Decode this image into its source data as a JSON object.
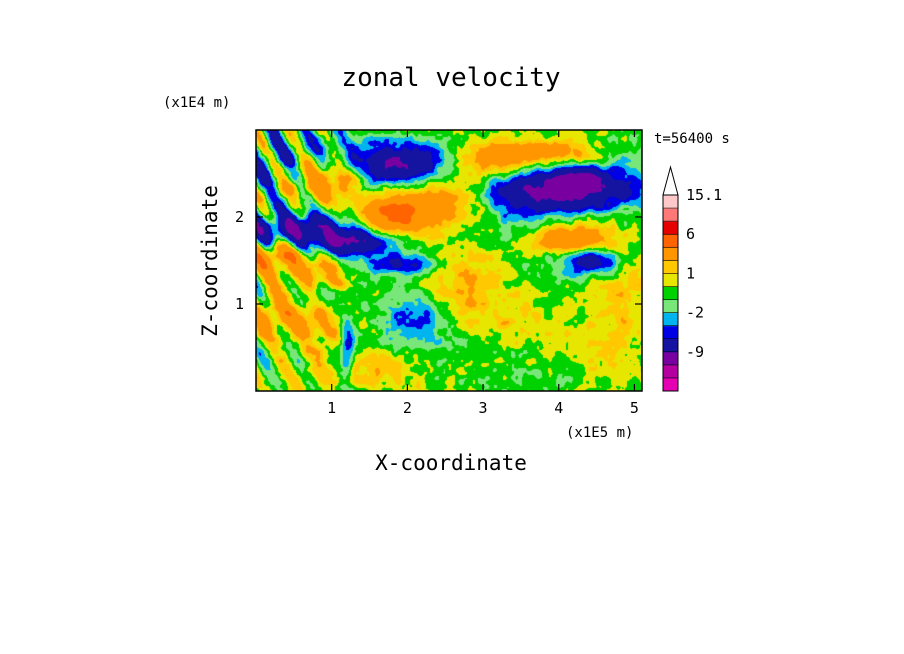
{
  "chart_data": {
    "type": "heatmap",
    "title": "zonal velocity",
    "xlabel": "X-coordinate",
    "ylabel": "Z-coordinate",
    "x_unit": "(x1E5 m)",
    "y_unit": "(x1E4 m)",
    "time_label": "t=56400 s",
    "xlim": [
      0.0,
      5.1
    ],
    "ylim": [
      0.0,
      3.0
    ],
    "x_ticks": [
      1,
      2,
      3,
      4,
      5
    ],
    "y_ticks": [
      1,
      2
    ],
    "colorbar": {
      "levels": [
        -15,
        -12,
        -9,
        -6,
        -3,
        -2,
        -1,
        0,
        1,
        2,
        3,
        6,
        9,
        12,
        15.1
      ],
      "colors": [
        "#e600b4",
        "#b400a0",
        "#7800a0",
        "#1414a0",
        "#0000e6",
        "#00b4f0",
        "#78e678",
        "#00d200",
        "#e6e600",
        "#ffc800",
        "#ff9600",
        "#ff6400",
        "#e60000",
        "#ff7878",
        "#ffc8c8"
      ],
      "tick_labels": [
        {
          "value": -9,
          "label": "-9"
        },
        {
          "value": -2,
          "label": "-2"
        },
        {
          "value": 1,
          "label": "1"
        },
        {
          "value": 6,
          "label": "6"
        },
        {
          "value": 15.1,
          "label": "15.1"
        }
      ],
      "extend_max": true
    },
    "features": [
      {
        "x": 1.9,
        "z": 2.6,
        "sx": 0.45,
        "sz": 0.17,
        "v": -7
      },
      {
        "x": 3.9,
        "z": 2.3,
        "sx": 0.75,
        "sz": 0.16,
        "v": -8
      },
      {
        "x": 4.4,
        "z": 1.5,
        "sx": 0.25,
        "sz": 0.1,
        "v": -6
      },
      {
        "x": 4.3,
        "z": 2.45,
        "sx": 0.25,
        "sz": 0.1,
        "v": -4
      },
      {
        "x": 0.5,
        "z": 1.85,
        "sx": 0.6,
        "sz": 0.15,
        "v": -6
      },
      {
        "x": 1.3,
        "z": 1.7,
        "sx": 0.4,
        "sz": 0.1,
        "v": -6
      },
      {
        "x": 2.0,
        "z": 1.45,
        "sx": 0.35,
        "sz": 0.08,
        "v": -4
      },
      {
        "x": 1.2,
        "z": 0.5,
        "sx": 0.08,
        "sz": 0.25,
        "v": -5
      },
      {
        "x": 2.1,
        "z": 0.8,
        "sx": 0.3,
        "sz": 0.25,
        "v": -3
      },
      {
        "x": 0.2,
        "z": 2.6,
        "sx": 0.35,
        "sz": 0.25,
        "v": -2
      },
      {
        "x": 1.8,
        "z": 2.0,
        "sx": 0.35,
        "sz": 0.15,
        "v": 6
      },
      {
        "x": 2.5,
        "z": 2.2,
        "sx": 0.5,
        "sz": 0.2,
        "v": 4
      },
      {
        "x": 3.0,
        "z": 2.6,
        "sx": 0.4,
        "sz": 0.18,
        "v": 3
      },
      {
        "x": 4.2,
        "z": 1.75,
        "sx": 0.35,
        "sz": 0.12,
        "v": 5
      },
      {
        "x": 3.8,
        "z": 2.75,
        "sx": 0.45,
        "sz": 0.1,
        "v": 4
      },
      {
        "x": 0.9,
        "z": 2.4,
        "sx": 0.35,
        "sz": 0.15,
        "v": 4
      },
      {
        "x": 0.3,
        "z": 1.55,
        "sx": 0.35,
        "sz": 0.15,
        "v": 5
      },
      {
        "x": 0.3,
        "z": 0.9,
        "sx": 0.3,
        "sz": 0.2,
        "v": 3
      },
      {
        "x": 0.9,
        "z": 0.7,
        "sx": 0.3,
        "sz": 0.25,
        "v": 2
      },
      {
        "x": 2.7,
        "z": 1.3,
        "sx": 0.4,
        "sz": 0.3,
        "v": 2
      },
      {
        "x": 3.2,
        "z": 0.85,
        "sx": 0.5,
        "sz": 0.3,
        "v": 1.5
      },
      {
        "x": 4.7,
        "z": 0.6,
        "sx": 0.5,
        "sz": 0.45,
        "v": 1.2
      },
      {
        "x": 4.9,
        "z": 1.2,
        "sx": 0.3,
        "sz": 0.3,
        "v": 1.2
      },
      {
        "x": 1.6,
        "z": 0.25,
        "sx": 0.5,
        "sz": 0.15,
        "v": 2
      },
      {
        "x": 3.6,
        "z": 0.25,
        "sx": 0.6,
        "sz": 0.15,
        "v": -0.6
      },
      {
        "x": 2.7,
        "z": 0.6,
        "sx": 0.4,
        "sz": 0.3,
        "v": -0.5
      },
      {
        "x": 4.1,
        "z": 1.25,
        "sx": 0.45,
        "sz": 0.2,
        "v": -0.8
      },
      {
        "x": 3.3,
        "z": 1.95,
        "sx": 0.45,
        "sz": 0.18,
        "v": -1.5
      },
      {
        "x": 0.7,
        "z": 1.1,
        "sx": 0.25,
        "sz": 0.12,
        "v": -1.5
      },
      {
        "x": 1.0,
        "z": 2.85,
        "sx": 0.5,
        "sz": 0.12,
        "v": -1.2
      },
      {
        "x": 4.9,
        "z": 2.6,
        "sx": 0.25,
        "sz": 0.35,
        "v": -0.8
      },
      {
        "x": 0.9,
        "z": 1.3,
        "sx": 0.2,
        "sz": 0.1,
        "v": 3
      }
    ],
    "grid": false
  }
}
